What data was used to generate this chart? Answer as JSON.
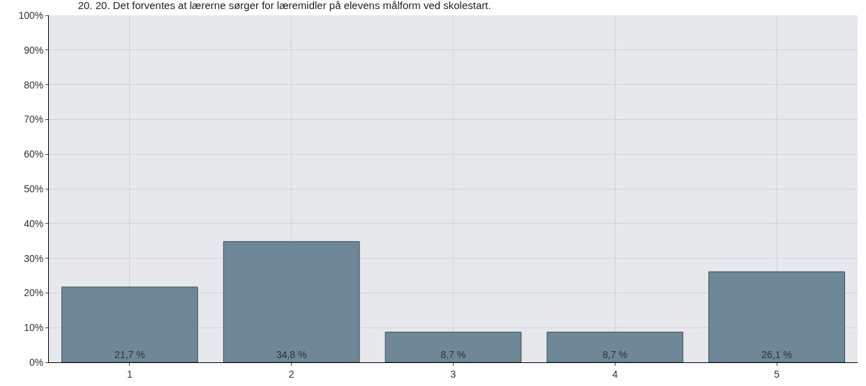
{
  "chart_data": {
    "type": "bar",
    "title": "20. 20. Det forventes at lærerne sørger for læremidler på elevens målform ved skolestart.",
    "categories": [
      "1",
      "2",
      "3",
      "4",
      "5"
    ],
    "values": [
      21.7,
      34.8,
      8.7,
      8.7,
      26.1
    ],
    "value_labels": [
      "21,7 %",
      "34,8 %",
      "8,7 %",
      "8,7 %",
      "26,1 %"
    ],
    "color": "#6f8898",
    "ylim": [
      0,
      100
    ],
    "yticks": [
      {
        "value": 0,
        "label": "0%"
      },
      {
        "value": 10,
        "label": "10%"
      },
      {
        "value": 20,
        "label": "20%"
      },
      {
        "value": 30,
        "label": "30%"
      },
      {
        "value": 40,
        "label": "40%"
      },
      {
        "value": 50,
        "label": "50%"
      },
      {
        "value": 60,
        "label": "60%"
      },
      {
        "value": 70,
        "label": "70%"
      },
      {
        "value": 80,
        "label": "80%"
      },
      {
        "value": 90,
        "label": "90%"
      },
      {
        "value": 100,
        "label": "100%"
      }
    ],
    "grid": true
  }
}
